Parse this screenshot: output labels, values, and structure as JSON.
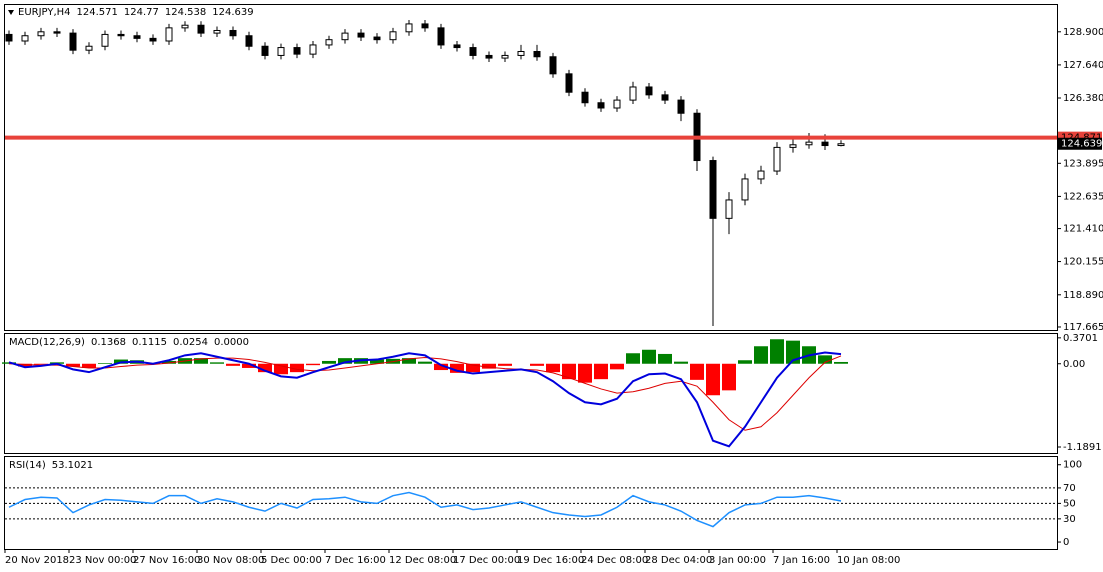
{
  "chart_data": [
    {
      "type": "candlestick",
      "title": "EURJPY,H4",
      "categories": [
        "20 Nov 2018",
        null,
        null,
        null,
        "23 Nov 00:00",
        null,
        null,
        null,
        "27 Nov 16:00",
        null,
        null,
        null,
        "30 Nov 08:00",
        null,
        null,
        null,
        "5 Dec 00:00",
        null,
        null,
        null,
        "7 Dec 16:00",
        null,
        null,
        null,
        "12 Dec 08:00",
        null,
        null,
        null,
        "17 Dec 00:00",
        null,
        null,
        null,
        "19 Dec 16:00",
        null,
        null,
        null,
        "24 Dec 08:00",
        null,
        null,
        null,
        "28 Dec 04:00",
        null,
        null,
        null,
        "3 Jan 00:00",
        null,
        null,
        null,
        "7 Jan 16:00",
        null,
        null,
        null,
        "10 Jan 08:00"
      ],
      "open": [
        128.8,
        128.55,
        128.75,
        128.9,
        128.85,
        128.2,
        128.35,
        128.8,
        128.75,
        128.65,
        128.55,
        129.05,
        129.15,
        128.85,
        128.95,
        128.75,
        128.35,
        128.0,
        128.3,
        128.05,
        128.4,
        128.6,
        128.85,
        128.7,
        128.6,
        128.9,
        129.2,
        129.05,
        128.4,
        128.3,
        128.0,
        127.9,
        128.0,
        128.15,
        127.95,
        127.3,
        126.6,
        126.2,
        126.0,
        126.3,
        126.8,
        126.5,
        126.3,
        125.8,
        124.0,
        121.8,
        122.5,
        123.3,
        123.6,
        124.5,
        124.6,
        124.7,
        124.571
      ],
      "high": [
        128.95,
        128.9,
        129.05,
        129.05,
        129.0,
        128.5,
        128.95,
        128.95,
        128.9,
        128.8,
        129.2,
        129.3,
        129.3,
        129.1,
        129.1,
        128.9,
        128.5,
        128.45,
        128.45,
        128.55,
        128.75,
        129.0,
        129.0,
        128.85,
        129.05,
        129.35,
        129.35,
        129.2,
        128.55,
        128.45,
        128.15,
        128.15,
        128.4,
        128.4,
        128.1,
        127.45,
        126.75,
        126.35,
        126.45,
        127.0,
        126.95,
        126.65,
        126.45,
        125.95,
        124.15,
        122.8,
        123.5,
        123.8,
        124.7,
        124.9,
        125.05,
        125.0,
        124.77
      ],
      "low": [
        128.4,
        128.4,
        128.6,
        128.7,
        128.05,
        128.05,
        128.2,
        128.6,
        128.5,
        128.4,
        128.4,
        128.9,
        128.7,
        128.7,
        128.6,
        128.2,
        127.85,
        127.85,
        127.9,
        127.9,
        128.25,
        128.45,
        128.55,
        128.45,
        128.45,
        128.75,
        128.9,
        128.25,
        128.15,
        127.85,
        127.75,
        127.75,
        127.85,
        127.8,
        127.15,
        126.45,
        126.05,
        125.85,
        125.85,
        126.15,
        126.35,
        126.15,
        125.5,
        123.6,
        117.7,
        121.2,
        122.3,
        123.1,
        123.45,
        124.3,
        124.45,
        124.4,
        124.538
      ],
      "close": [
        128.55,
        128.75,
        128.9,
        128.85,
        128.2,
        128.35,
        128.8,
        128.75,
        128.65,
        128.55,
        129.05,
        129.15,
        128.85,
        128.95,
        128.75,
        128.35,
        128.0,
        128.3,
        128.05,
        128.4,
        128.6,
        128.85,
        128.7,
        128.6,
        128.9,
        129.2,
        129.05,
        128.4,
        128.3,
        128.0,
        127.9,
        128.0,
        128.15,
        127.95,
        127.3,
        126.6,
        126.2,
        126.0,
        126.3,
        126.8,
        126.5,
        126.3,
        125.8,
        124.0,
        121.8,
        122.5,
        123.3,
        123.6,
        124.5,
        124.6,
        124.7,
        124.571,
        124.639
      ],
      "up_color": "#ffffff",
      "down_color": "#000000",
      "outline_color": "#000000",
      "ylim": [
        117.55,
        129.92
      ],
      "yticks": [
        {
          "value": 128.9,
          "label": "128.900"
        },
        {
          "value": 127.64,
          "label": "127.640"
        },
        {
          "value": 126.38,
          "label": "126.380"
        },
        {
          "value": 123.895,
          "label": "123.895"
        },
        {
          "value": 122.635,
          "label": "122.635"
        },
        {
          "value": 121.41,
          "label": "121.410"
        },
        {
          "value": 120.155,
          "label": "120.155"
        },
        {
          "value": 118.89,
          "label": "118.890"
        },
        {
          "value": 117.665,
          "label": "117.665"
        }
      ],
      "level": 124.871,
      "level_color": "#e8423a"
    },
    {
      "type": "macd",
      "title": "MACD(12,26,9)",
      "main": {
        "color": "#0000dd",
        "values": [
          0.02,
          -0.05,
          -0.03,
          0.0,
          -0.08,
          -0.12,
          -0.05,
          0.02,
          0.03,
          0.0,
          0.05,
          0.12,
          0.15,
          0.1,
          0.05,
          0.0,
          -0.1,
          -0.18,
          -0.2,
          -0.12,
          -0.05,
          0.02,
          0.05,
          0.06,
          0.1,
          0.15,
          0.12,
          -0.02,
          -0.1,
          -0.14,
          -0.12,
          -0.1,
          -0.08,
          -0.12,
          -0.25,
          -0.42,
          -0.55,
          -0.58,
          -0.5,
          -0.25,
          -0.15,
          -0.14,
          -0.22,
          -0.55,
          -1.1,
          -1.18,
          -0.9,
          -0.55,
          -0.2,
          0.05,
          0.12,
          0.16,
          0.1368
        ]
      },
      "signal": {
        "color": "#dd0000",
        "values": [
          0.0,
          -0.01,
          -0.02,
          -0.02,
          -0.04,
          -0.06,
          -0.06,
          -0.04,
          -0.02,
          -0.01,
          0.01,
          0.04,
          0.07,
          0.08,
          0.08,
          0.06,
          0.02,
          -0.03,
          -0.08,
          -0.1,
          -0.09,
          -0.06,
          -0.03,
          0.0,
          0.03,
          0.07,
          0.09,
          0.07,
          0.03,
          -0.02,
          -0.05,
          -0.07,
          -0.08,
          -0.09,
          -0.13,
          -0.2,
          -0.28,
          -0.36,
          -0.42,
          -0.4,
          -0.35,
          -0.28,
          -0.25,
          -0.32,
          -0.55,
          -0.8,
          -0.95,
          -0.9,
          -0.7,
          -0.45,
          -0.2,
          0.02,
          0.1115
        ]
      },
      "histogram": {
        "up_color": "#008000",
        "down_color": "#ff0000",
        "values": [
          0.02,
          -0.04,
          -0.01,
          0.02,
          -0.04,
          -0.06,
          0.01,
          0.06,
          0.05,
          0.01,
          0.04,
          0.08,
          0.08,
          0.02,
          -0.03,
          -0.06,
          -0.12,
          -0.15,
          -0.12,
          -0.02,
          0.04,
          0.08,
          0.08,
          0.06,
          0.07,
          0.08,
          0.03,
          -0.09,
          -0.13,
          -0.12,
          -0.07,
          -0.03,
          0.0,
          -0.03,
          -0.12,
          -0.22,
          -0.27,
          -0.22,
          -0.08,
          0.15,
          0.2,
          0.14,
          0.03,
          -0.23,
          -0.45,
          -0.38,
          0.05,
          0.25,
          0.35,
          0.33,
          0.25,
          0.12,
          0.0254
        ]
      },
      "header_extra": "0.0000",
      "ylim": [
        -1.275,
        0.425
      ],
      "yticks": [
        0.3701,
        {
          "value": 0,
          "label": "0.00"
        },
        -1.1891
      ]
    },
    {
      "type": "line",
      "title": "RSI(14)",
      "color": "#1e90ff",
      "values": [
        45,
        55,
        58,
        57,
        38,
        48,
        55,
        54,
        52,
        50,
        60,
        60,
        50,
        56,
        52,
        45,
        40,
        50,
        44,
        55,
        56,
        58,
        52,
        50,
        60,
        64,
        58,
        45,
        48,
        42,
        44,
        48,
        52,
        45,
        38,
        35,
        33,
        35,
        45,
        60,
        52,
        48,
        40,
        28,
        20,
        38,
        48,
        50,
        58,
        58,
        60,
        57,
        53.1021
      ],
      "levels": [
        70,
        50,
        30
      ],
      "ylim": [
        -9,
        110
      ],
      "yticks": [
        100,
        70,
        50,
        30,
        0
      ]
    }
  ]
}
